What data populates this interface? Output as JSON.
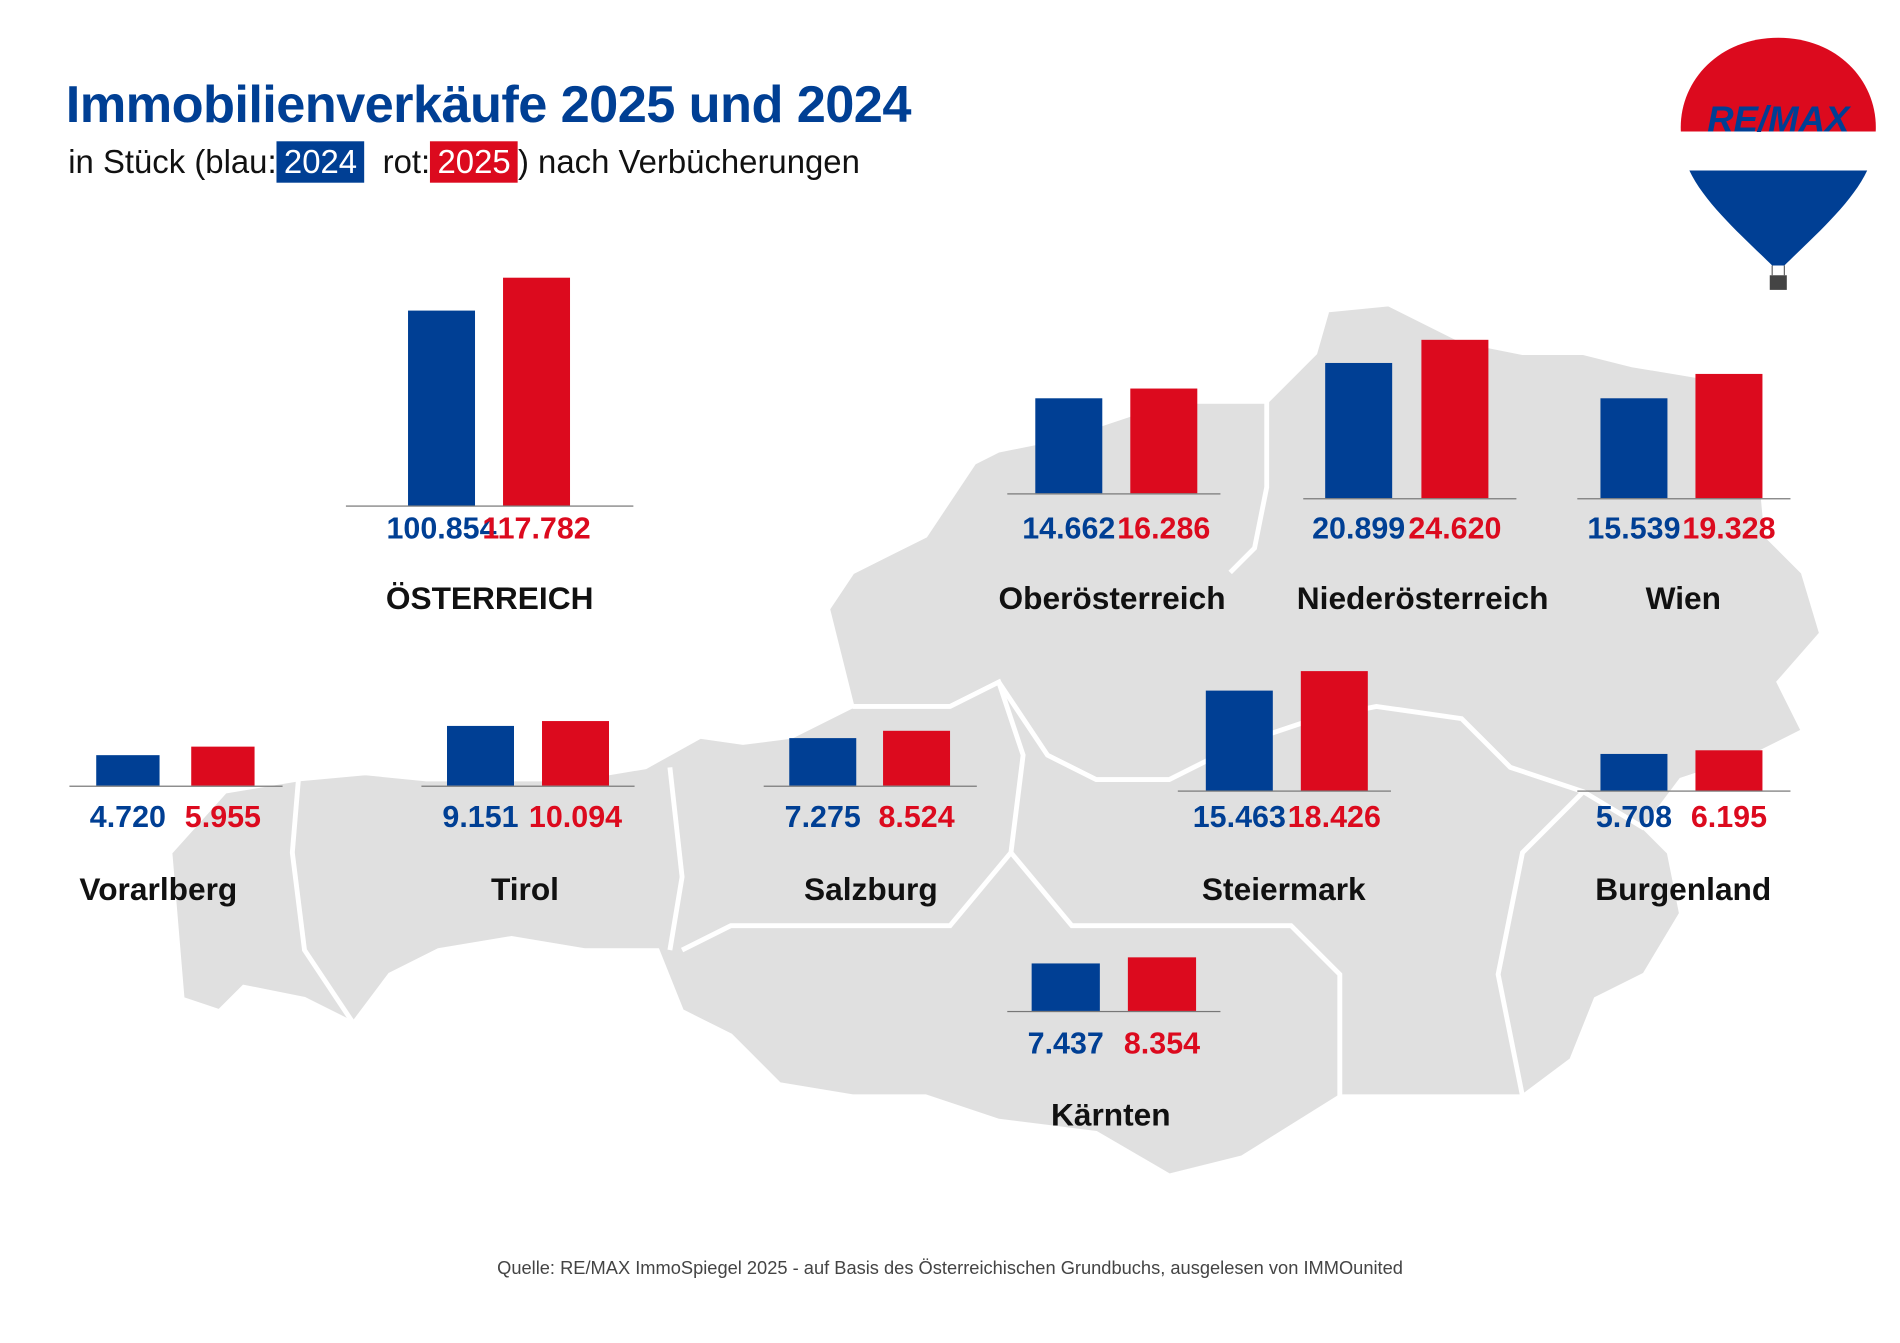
{
  "header": {
    "title": "Immobilienverkäufe 2025 und 2024",
    "subtitle_prefix": "in Stück (blau:",
    "subtitle_blue": "2024",
    "subtitle_mid": "  rot:",
    "subtitle_red": "2025",
    "subtitle_suffix": ") nach Verbücherungen"
  },
  "logo": {
    "text": "RE/MAX"
  },
  "colors": {
    "2024": "#003f94",
    "2025": "#dc0a1e",
    "map": "#e0e0e0"
  },
  "chart_data": {
    "type": "bar",
    "series_labels": [
      "2024",
      "2025"
    ],
    "regions": [
      {
        "name": "ÖSTERREICH",
        "v2024": 100854,
        "v2025": 117782,
        "l2024": "100.854",
        "l2025": "117.782"
      },
      {
        "name": "Oberösterreich",
        "v2024": 14662,
        "v2025": 16286,
        "l2024": "14.662",
        "l2025": "16.286"
      },
      {
        "name": "Niederösterreich",
        "v2024": 20899,
        "v2025": 24620,
        "l2024": "20.899",
        "l2025": "24.620"
      },
      {
        "name": "Wien",
        "v2024": 15539,
        "v2025": 19328,
        "l2024": "15.539",
        "l2025": "19.328"
      },
      {
        "name": "Vorarlberg",
        "v2024": 4720,
        "v2025": 5955,
        "l2024": "4.720",
        "l2025": "5.955"
      },
      {
        "name": "Tirol",
        "v2024": 9151,
        "v2025": 10094,
        "l2024": "9.151",
        "l2025": "10.094"
      },
      {
        "name": "Salzburg",
        "v2024": 7275,
        "v2025": 8524,
        "l2024": "7.275",
        "l2025": "8.524"
      },
      {
        "name": "Steiermark",
        "v2024": 15463,
        "v2025": 18426,
        "l2024": "15.463",
        "l2025": "18.426"
      },
      {
        "name": "Burgenland",
        "v2024": 5708,
        "v2025": 6195,
        "l2024": "5.708",
        "l2025": "6.195"
      },
      {
        "name": "Kärnten",
        "v2024": 7437,
        "v2025": 8354,
        "l2024": "7.437",
        "l2025": "8.354"
      }
    ]
  },
  "footer": {
    "source": "Quelle: RE/MAX ImmoSpiegel 2025 - auf Basis des Österreichischen Grundbuchs, ausgelesen von IMMOunited"
  }
}
